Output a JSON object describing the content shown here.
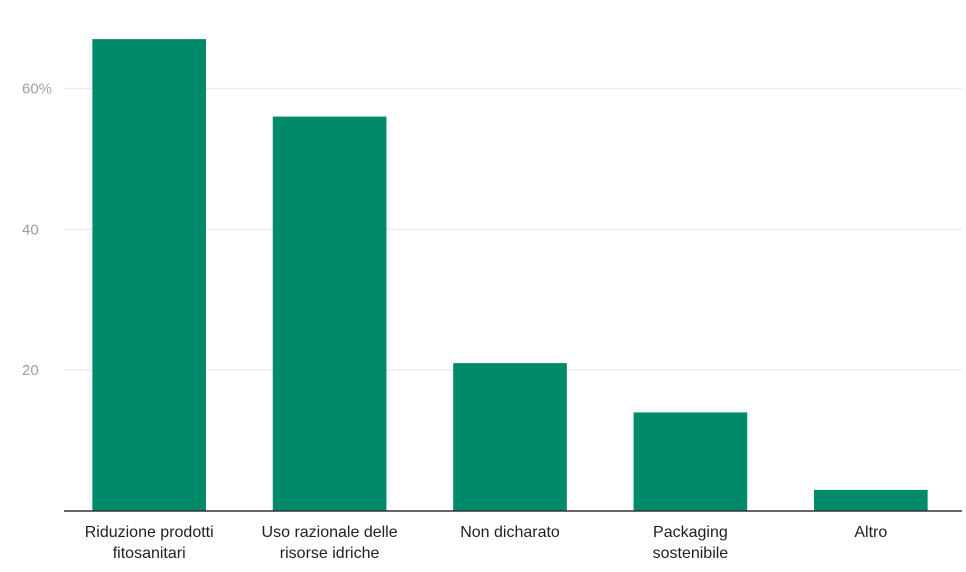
{
  "chart_data": {
    "type": "bar",
    "categories": [
      [
        "Riduzione prodotti",
        "fitosanitari"
      ],
      [
        "Uso razionale delle",
        "risorse idriche"
      ],
      [
        "Non dicharato"
      ],
      [
        "Packaging",
        "sostenibile"
      ],
      [
        "Altro"
      ]
    ],
    "values": [
      67,
      56,
      21,
      14,
      3
    ],
    "ylim": [
      0,
      70
    ],
    "yticks": [
      {
        "value": 20,
        "label": "20"
      },
      {
        "value": 40,
        "label": "40"
      },
      {
        "value": 60,
        "label": "60%"
      }
    ],
    "grid": true,
    "title": "",
    "xlabel": "",
    "ylabel": "",
    "colors": {
      "bar": "#00896b"
    }
  }
}
